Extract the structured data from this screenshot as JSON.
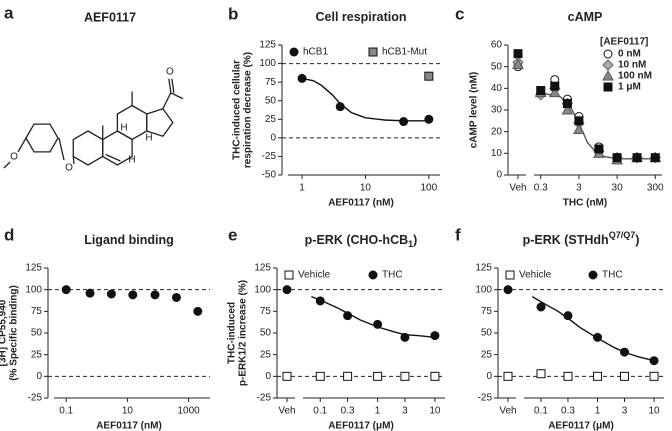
{
  "structure": {
    "label": "a",
    "title": "AEF0117",
    "atoms": [
      "O",
      "O",
      "O",
      "H",
      "H",
      "H"
    ]
  },
  "chart_data": [
    {
      "type": "scatter",
      "label": "b",
      "title": "Cell respiration",
      "xlabel": "AEF0117 (nM)",
      "ylabel": [
        "THC-induced cellular",
        "respiration decrease (%)"
      ],
      "xscale": "log",
      "xlim": [
        0.6,
        150
      ],
      "xticks": [
        1,
        10,
        100
      ],
      "ylim": [
        -50,
        125
      ],
      "yticks": [
        -50,
        -25,
        0,
        25,
        50,
        75,
        100,
        125
      ],
      "ref_lines": [
        0,
        100
      ],
      "legend": "top",
      "series": [
        {
          "name": "hCB1",
          "color": "#111111",
          "marker": "circle",
          "x": [
            1,
            4,
            40,
            100
          ],
          "values": [
            80,
            42,
            22,
            25
          ]
        },
        {
          "name": "hCB1-Mut",
          "color": "#888888",
          "marker": "square",
          "x": [
            100
          ],
          "values": [
            83
          ]
        }
      ],
      "curves": [
        {
          "color": "#111111",
          "x": [
            1,
            1.5,
            2,
            3,
            4,
            6,
            10,
            20,
            40,
            100
          ],
          "values": [
            80,
            77,
            71,
            58,
            46,
            34,
            27,
            24,
            23,
            23
          ]
        }
      ]
    },
    {
      "type": "scatter",
      "label": "c",
      "title": "cAMP",
      "xlabel": "THC (nM)",
      "ylabel": [
        "cAMP level (nM)"
      ],
      "xscale": "log",
      "veh_label": "Veh",
      "xlim": [
        0.2,
        450
      ],
      "xticks": [
        0.3,
        3,
        30,
        300
      ],
      "ylim": [
        0,
        60
      ],
      "yticks": [
        0,
        10,
        20,
        30,
        40,
        50,
        60
      ],
      "legend": "right",
      "legend_title": "[AEF0117]",
      "series": [
        {
          "name": "0 nM",
          "color": "#ffffff",
          "marker": "open-circle",
          "veh": 50,
          "x": [
            0.3,
            0.7,
            1.5,
            3,
            10,
            30,
            100,
            300
          ],
          "values": [
            38,
            44,
            35,
            27,
            13,
            8,
            8,
            8
          ]
        },
        {
          "name": "10 nM",
          "color": "#aaaaaa",
          "marker": "diamond",
          "veh": 52,
          "x": [
            0.3,
            0.7,
            1.5,
            3,
            10,
            30,
            100,
            300
          ],
          "values": [
            37,
            40,
            33,
            24,
            11,
            8,
            8,
            8
          ]
        },
        {
          "name": "100 nM",
          "color": "#888888",
          "marker": "triangle",
          "veh": 51,
          "x": [
            0.3,
            0.7,
            1.5,
            3,
            10,
            30,
            100,
            300
          ],
          "values": [
            38,
            38,
            30,
            21,
            10,
            7,
            8,
            8
          ]
        },
        {
          "name": "1 μM",
          "color": "#111111",
          "marker": "square",
          "veh": 56,
          "x": [
            0.3,
            0.7,
            1.5,
            3,
            10,
            30,
            100,
            300
          ],
          "values": [
            39,
            41,
            33,
            25,
            12,
            8,
            8,
            8
          ]
        }
      ],
      "curves": [
        {
          "color": "#555555",
          "x": [
            0.3,
            1,
            2,
            3,
            5,
            10,
            30,
            300
          ],
          "values": [
            38,
            36,
            30,
            24,
            15,
            9,
            7.5,
            7.5
          ]
        }
      ]
    },
    {
      "type": "scatter",
      "label": "d",
      "title": "Ligand binding",
      "xlabel": "AEF0117 (nM)",
      "ylabel": [
        "[3H] CP55,940",
        "(% Specific binding)"
      ],
      "xscale": "log",
      "xlim": [
        0.04,
        5000
      ],
      "xticks": [
        0.1,
        10,
        1000
      ],
      "ylim": [
        -25,
        125
      ],
      "yticks": [
        -25,
        0,
        25,
        50,
        75,
        100,
        125
      ],
      "ref_lines": [
        0,
        100
      ],
      "series": [
        {
          "color": "#111111",
          "marker": "circle",
          "x": [
            0.1,
            0.6,
            3,
            15,
            80,
            400,
            2000
          ],
          "values": [
            100,
            96,
            95,
            94,
            94,
            91,
            75
          ]
        }
      ]
    },
    {
      "type": "scatter",
      "label": "e",
      "title": "p-ERK (CHO-hCB",
      "title_sub": "1",
      "title_end": ")",
      "xlabel": "AEF0117 (μM)",
      "ylabel": [
        "THC-induced",
        "p-ERK1/2 increase (%)"
      ],
      "xscale": "log",
      "veh_label": "Veh",
      "xlim": [
        0.05,
        15
      ],
      "xticks": [
        0.1,
        0.3,
        1,
        3,
        10
      ],
      "ylim": [
        -25,
        125
      ],
      "yticks": [
        -25,
        0,
        25,
        50,
        75,
        100,
        125
      ],
      "ref_lines": [
        0,
        100
      ],
      "legend": "top",
      "series": [
        {
          "name": "Vehicle",
          "color": "#ffffff",
          "marker": "open-square",
          "veh": 0,
          "x": [
            0.1,
            0.3,
            1,
            3,
            10
          ],
          "values": [
            0,
            0,
            0,
            0,
            0
          ]
        },
        {
          "name": "THC",
          "color": "#111111",
          "marker": "circle",
          "veh": 100,
          "x": [
            0.1,
            0.3,
            1,
            3,
            10
          ],
          "values": [
            87,
            70,
            60,
            45,
            47
          ]
        }
      ],
      "curves": [
        {
          "color": "#111111",
          "x": [
            0.07,
            0.1,
            0.2,
            0.3,
            0.5,
            1,
            2,
            3,
            5,
            10
          ],
          "values": [
            92,
            88,
            79,
            73,
            65,
            57,
            51,
            48,
            47,
            45
          ]
        }
      ]
    },
    {
      "type": "scatter",
      "label": "f",
      "title": "p-ERK (STHdh",
      "title_sup": "Q7/Q7",
      "title_end": ")",
      "xlabel": "AEF0117 (μM)",
      "xscale": "log",
      "veh_label": "Veh",
      "xlim": [
        0.05,
        15
      ],
      "xticks": [
        0.1,
        0.3,
        1,
        3,
        10
      ],
      "ylim": [
        -25,
        125
      ],
      "yticks": [
        -25,
        0,
        25,
        50,
        75,
        100,
        125
      ],
      "ref_lines": [
        0,
        100
      ],
      "legend": "top",
      "series": [
        {
          "name": "Vehicle",
          "color": "#ffffff",
          "marker": "open-square",
          "veh": 0,
          "x": [
            0.1,
            0.3,
            1,
            3,
            10
          ],
          "values": [
            3,
            0,
            0,
            0,
            0
          ]
        },
        {
          "name": "THC",
          "color": "#111111",
          "marker": "circle",
          "veh": 100,
          "x": [
            0.1,
            0.3,
            1,
            3,
            10
          ],
          "values": [
            80,
            70,
            45,
            28,
            18
          ]
        }
      ],
      "curves": [
        {
          "color": "#111111",
          "x": [
            0.07,
            0.1,
            0.2,
            0.3,
            0.5,
            1,
            2,
            3,
            5,
            10
          ],
          "values": [
            92,
            86,
            75,
            67,
            56,
            44,
            33,
            28,
            23,
            18
          ]
        }
      ]
    }
  ]
}
